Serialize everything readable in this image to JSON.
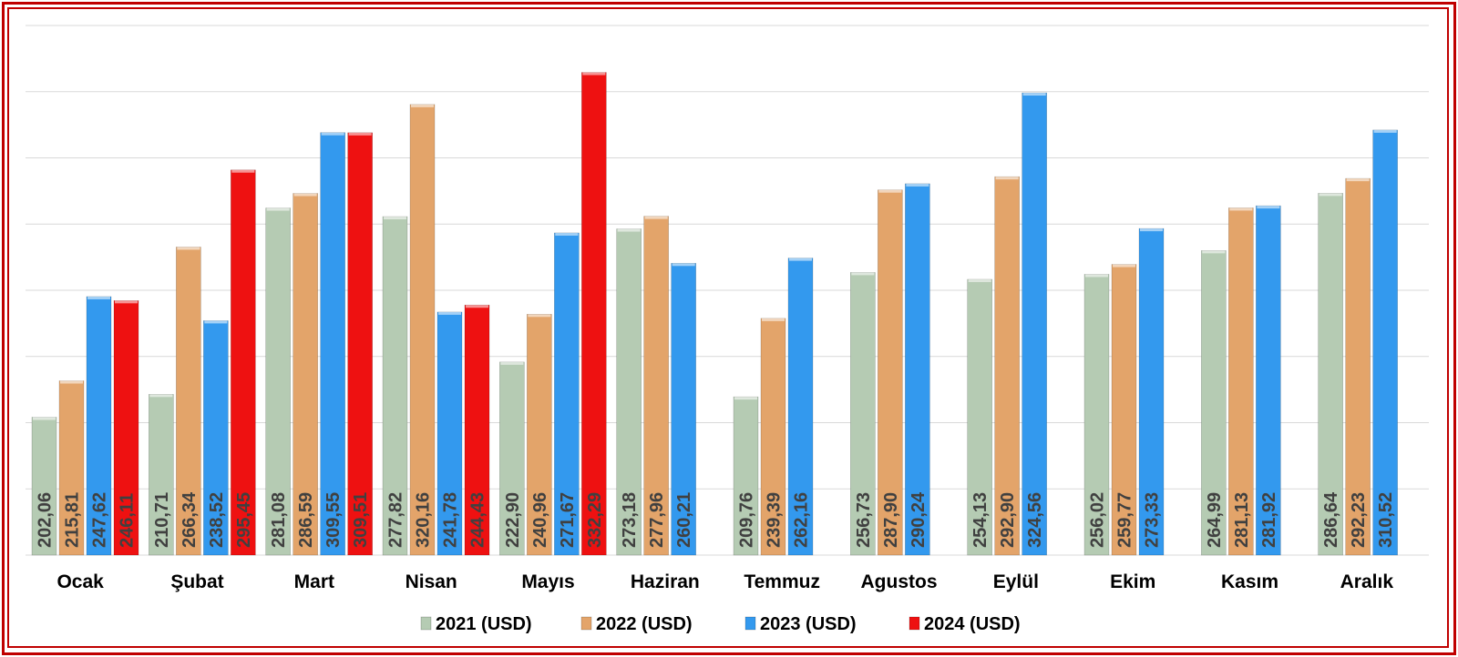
{
  "chart_data": {
    "type": "bar",
    "title": "",
    "xlabel": "",
    "ylabel": "",
    "ylim": [
      150,
      350
    ],
    "grid": true,
    "legend_position": "bottom",
    "categories": [
      "Ocak",
      "Şubat",
      "Mart",
      "Nisan",
      "Mayıs",
      "Haziran",
      "Temmuz",
      "Agustos",
      "Eylül",
      "Ekim",
      "Kasım",
      "Aralık"
    ],
    "series": [
      {
        "name": "2021 (USD)",
        "color": "#b5cbb3",
        "values": [
          202.06,
          210.71,
          281.08,
          277.82,
          222.9,
          273.18,
          209.76,
          256.73,
          254.13,
          256.02,
          264.99,
          286.64
        ],
        "labels": [
          "202,06",
          "210,71",
          "281,08",
          "277,82",
          "222,90",
          "273,18",
          "209,76",
          "256,73",
          "254,13",
          "256,02",
          "264,99",
          "286,64"
        ]
      },
      {
        "name": "2022 (USD)",
        "color": "#e3a46a",
        "values": [
          215.81,
          266.34,
          286.59,
          320.16,
          240.96,
          277.96,
          239.39,
          287.9,
          292.9,
          259.77,
          281.13,
          292.23
        ],
        "labels": [
          "215,81",
          "266,34",
          "286,59",
          "320,16",
          "240,96",
          "277,96",
          "239,39",
          "287,90",
          "292,90",
          "259,77",
          "281,13",
          "292,23"
        ]
      },
      {
        "name": "2023 (USD)",
        "color": "#3399ee",
        "values": [
          247.62,
          238.52,
          309.55,
          241.78,
          271.67,
          260.21,
          262.16,
          290.24,
          324.56,
          273.33,
          281.92,
          310.52
        ],
        "labels": [
          "247,62",
          "238,52",
          "309,55",
          "241,78",
          "271,67",
          "260,21",
          "262,16",
          "290,24",
          "324,56",
          "273,33",
          "281,92",
          "310,52"
        ]
      },
      {
        "name": "2024 (USD)",
        "color": "#ee1111",
        "values": [
          246.11,
          295.45,
          309.51,
          244.43,
          332.29,
          null,
          null,
          null,
          null,
          null,
          null,
          null
        ],
        "labels": [
          "246,11",
          "295,45",
          "309,51",
          "244,43",
          "332,29",
          null,
          null,
          null,
          null,
          null,
          null,
          null
        ]
      }
    ]
  }
}
